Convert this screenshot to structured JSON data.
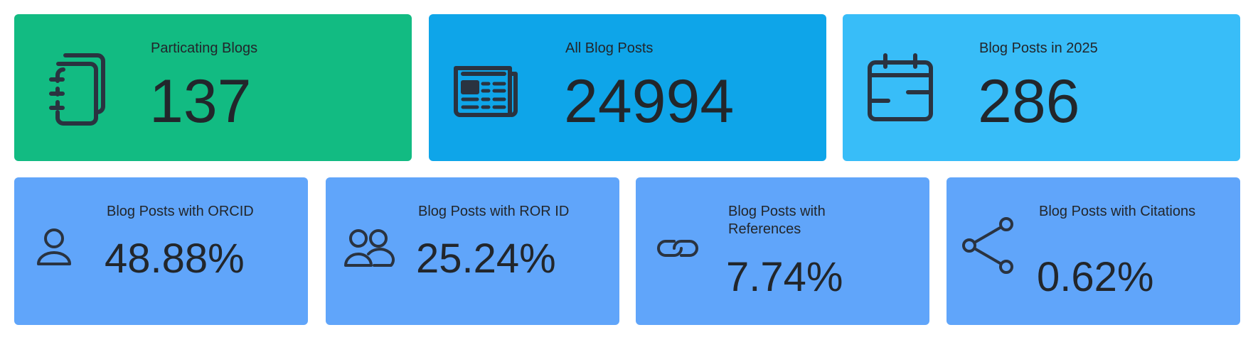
{
  "top_cards": [
    {
      "label": "Particating Blogs",
      "value": "137",
      "icon": "notebooks-icon",
      "color": "#12bb82"
    },
    {
      "label": "All Blog Posts",
      "value": "24994",
      "icon": "newspaper-icon",
      "color": "#0ea5e9"
    },
    {
      "label": "Blog Posts in 2025",
      "value": "286",
      "icon": "calendar-icon",
      "color": "#38bdf8"
    }
  ],
  "bottom_cards": [
    {
      "label": "Blog Posts with ORCID",
      "value": "48.88%",
      "icon": "user-icon",
      "color": "#60a5fa"
    },
    {
      "label": "Blog Posts with ROR ID",
      "value": "25.24%",
      "icon": "users-icon",
      "color": "#60a5fa"
    },
    {
      "label": "Blog Posts with References",
      "value": "7.74%",
      "icon": "link-icon",
      "color": "#60a5fa"
    },
    {
      "label": "Blog Posts with Citations",
      "value": "0.62%",
      "icon": "share-icon",
      "color": "#60a5fa"
    }
  ]
}
